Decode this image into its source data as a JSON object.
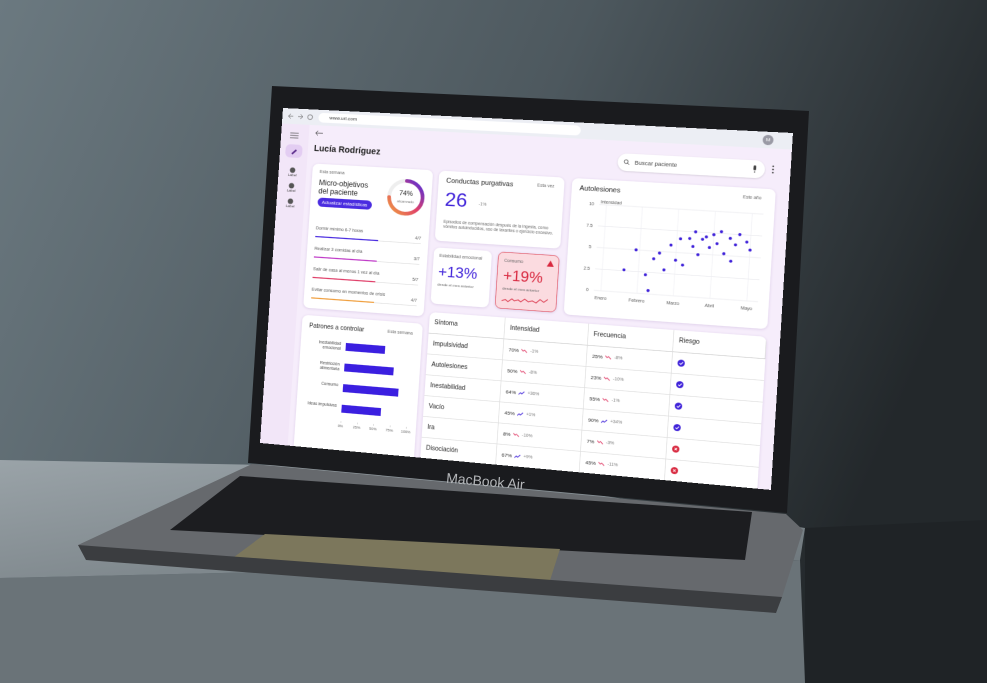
{
  "browser": {
    "url": "www.url.com",
    "avatar": "M"
  },
  "sidebar": {
    "items": [
      "Label",
      "Label",
      "Label"
    ]
  },
  "header": {
    "patient": "Lucía Rodríguez",
    "search_placeholder": "Buscar paciente"
  },
  "micro_objectives": {
    "period": "Esta semana",
    "title": "Micro-objetivos del paciente",
    "button": "Actualizar estadísticas",
    "progress": {
      "value": 74,
      "label": "74%"
    },
    "progress_caption": "alcanzado",
    "goals": [
      {
        "text": "Dormir mínimo 6-7 horas",
        "score": "4/7"
      },
      {
        "text": "Realizar 3 comidas al día",
        "score": "3/7"
      },
      {
        "text": "Salir de casa al menos 1 vez al día",
        "score": "5/7"
      },
      {
        "text": "Evitar consumo en momentos de crisis",
        "score": "4/7"
      }
    ]
  },
  "purging": {
    "title": "Conductas purgativas",
    "period": "Esta vez",
    "value": "26",
    "trend": "-1%",
    "description": "Episodios de compensación después de la ingesta, como vómitos autoinducidos, uso de laxantes o ejercicio excesivo."
  },
  "emotional_stability": {
    "title": "Estabilidad emocional",
    "value": "+13%",
    "caption": "desde el mes anterior"
  },
  "consumption": {
    "title": "Consumo",
    "value": "+19%",
    "caption": "desde el mes anterior"
  },
  "chart_data": [
    {
      "type": "scatter",
      "title": "Autolesiones",
      "period": "Este año",
      "y_label": "Intensidad",
      "x": [
        0.6,
        0.9,
        1.2,
        1.3,
        1.4,
        1.55,
        1.7,
        1.85,
        2.0,
        2.1,
        2.2,
        2.35,
        2.45,
        2.5,
        2.6,
        2.7,
        2.8,
        2.9,
        3.0,
        3.1,
        3.2,
        3.3,
        3.45,
        3.5,
        3.6,
        3.7,
        3.9,
        4.0
      ],
      "values": [
        2.6,
        5,
        2.2,
        0.4,
        4.1,
        4.8,
        2.9,
        5.8,
        4.1,
        6.6,
        3.6,
        6.7,
        5.8,
        7.5,
        4.9,
        6.7,
        7,
        5.8,
        7.3,
        6.3,
        7.7,
        5.2,
        7,
        4.4,
        6.3,
        7.5,
        6.7,
        5.8
      ],
      "color": "#3f22d9",
      "xlim": [
        -0.2,
        4.3
      ],
      "xticks": [
        {
          "value": 0,
          "label": "Enero"
        },
        {
          "value": 1,
          "label": "Febrero"
        },
        {
          "value": 2,
          "label": "Marzo"
        },
        {
          "value": 3,
          "label": "Abril"
        },
        {
          "value": 4,
          "label": "Mayo"
        }
      ],
      "ylim": [
        0,
        10
      ],
      "yticks": [
        0,
        2.5,
        5,
        7.5,
        10
      ],
      "grid": true
    },
    {
      "type": "bar",
      "orientation": "horizontal",
      "title": "Patrones a controlar",
      "period": "Esta semana",
      "categories": [
        "Inestabilidad emocional",
        "Restricción alimentaria",
        "Consumo",
        "Ideas impulsivas"
      ],
      "values": [
        60,
        75,
        85,
        60
      ],
      "color": "#3b1fe0",
      "xlim": [
        0,
        100
      ],
      "xticks": [
        {
          "value": 0,
          "label": "0%"
        },
        {
          "value": 25,
          "label": "25%"
        },
        {
          "value": 50,
          "label": "50%"
        },
        {
          "value": 75,
          "label": "75%"
        },
        {
          "value": 100,
          "label": "100%"
        }
      ]
    }
  ],
  "symptoms_table": {
    "columns": [
      "Síntoma",
      "Intensidad",
      "Frecuencia",
      "Riesgo"
    ],
    "rows": [
      [
        "Impulsividad",
        "70%",
        "-1%",
        "25%",
        "-8%"
      ],
      [
        "Autolesiones",
        "50%",
        "-8%",
        "23%",
        "-10%"
      ],
      [
        "Inestabilidad",
        "64%",
        "+36%",
        "55%",
        "-1%"
      ],
      [
        "Vacío",
        "45%",
        "+1%",
        "90%",
        "+34%"
      ],
      [
        "Ira",
        "8%",
        "-10%",
        "7%",
        "-3%"
      ],
      [
        "Disociación",
        "67%",
        "+9%",
        "45%",
        "-11%"
      ]
    ]
  },
  "laptop_label": "MacBook Air"
}
